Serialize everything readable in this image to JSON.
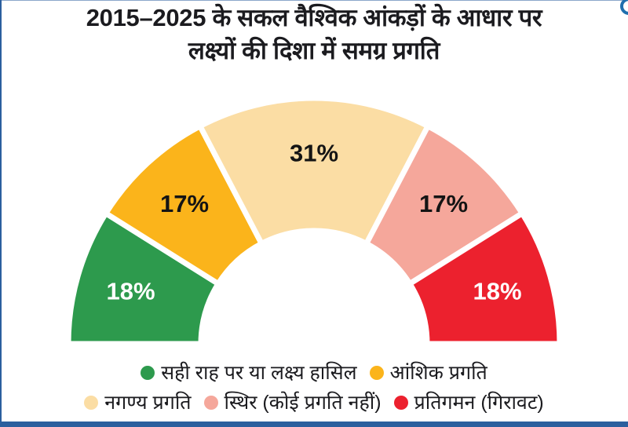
{
  "title": {
    "line1": "2015–2025 के सकल वैश्विक आंकड़ों के आधार पर",
    "line2": "लक्ष्यों की दिशा में समग्र प्रगति"
  },
  "chart_data": {
    "type": "pie",
    "subtype": "semicircle-donut-gauge",
    "title": "2015–2025 के सकल वैश्विक आंकड़ों के आधार पर लक्ष्यों की दिशा में समग्र प्रगति",
    "unit": "%",
    "start_angle_deg": 180,
    "end_angle_deg": 0,
    "legend_position": "bottom",
    "segments": [
      {
        "label": "सही राह पर या लक्ष्य हासिल",
        "value": 18,
        "display": "18%",
        "color": "#2D9A4D",
        "label_color": "#FFFFFF"
      },
      {
        "label": "आंशिक प्रगति",
        "value": 17,
        "display": "17%",
        "color": "#FBB41B",
        "label_color": "#141414"
      },
      {
        "label": "नगण्य प्रगति",
        "value": 31,
        "display": "31%",
        "color": "#FBDDA4",
        "label_color": "#141414"
      },
      {
        "label": "स्थिर (कोई प्रगति नहीं)",
        "value": 17,
        "display": "17%",
        "color": "#F5A79B",
        "label_color": "#141414"
      },
      {
        "label": "प्रतिगमन (गिरावट)",
        "value": 18,
        "display": "18%",
        "color": "#EC212E",
        "label_color": "#FFFFFF"
      }
    ]
  },
  "legend": {
    "rows": [
      [
        {
          "label": "सही राह पर या लक्ष्य हासिल",
          "color": "#2D9A4D"
        },
        {
          "label": "आंशिक प्रगति",
          "color": "#FBB41B"
        }
      ],
      [
        {
          "label": "नगण्य प्रगति",
          "color": "#FBDDA4"
        },
        {
          "label": "स्थिर (कोई प्रगति नहीं)",
          "color": "#F5A79B"
        },
        {
          "label": "प्रतिगमन (गिरावट)",
          "color": "#EC212E"
        }
      ]
    ]
  },
  "frame": {
    "accent_color": "#2B5F9E"
  }
}
